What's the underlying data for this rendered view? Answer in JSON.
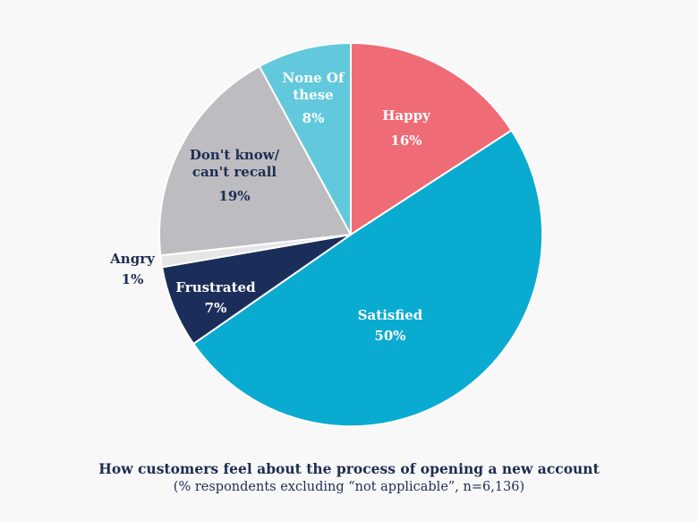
{
  "chart_data": {
    "type": "pie",
    "title": "How customers feel about the process of opening a new account",
    "subtitle": "(% respondents excluding “not applicable”, n=6,136)",
    "slices": [
      {
        "label": "Happy",
        "value": 16,
        "value_label": "16%",
        "color": "#ef6b76",
        "text_color": "#ffffff"
      },
      {
        "label": "Satisfied",
        "value": 50,
        "value_label": "50%",
        "color": "#0aabd0",
        "text_color": "#ffffff"
      },
      {
        "label": "Frustrated",
        "value": 7,
        "value_label": "7%",
        "color": "#1b2e5a",
        "text_color": "#ffffff"
      },
      {
        "label": "Angry",
        "value": 1,
        "value_label": "1%",
        "color": "#e6e6e6",
        "text_color": "#1e2d52"
      },
      {
        "label": "Don't know/ can't recall",
        "value": 19,
        "value_label": "19%",
        "color": "#bdbcc0",
        "text_color": "#1e2d52"
      },
      {
        "label": "None Of these",
        "value": 8,
        "value_label": "8%",
        "color": "#62c9dc",
        "text_color": "#ffffff"
      }
    ]
  }
}
